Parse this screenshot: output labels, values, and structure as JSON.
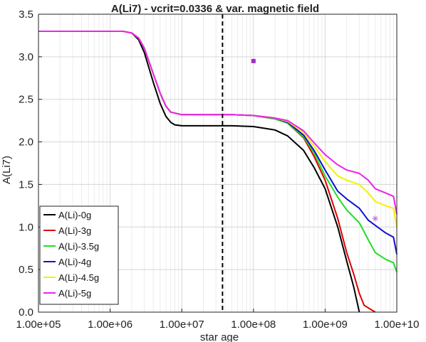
{
  "chart_data": {
    "type": "line",
    "title": "A(Li7) - vcrit=0.0336 & var. magnetic field",
    "xlabel": "star age",
    "ylabel": "A(Li7)",
    "xscale": "log",
    "xlim": [
      100000,
      10000000000
    ],
    "ylim": [
      0,
      3.5
    ],
    "x_tick_values": [
      100000,
      1000000,
      10000000,
      100000000,
      1000000000,
      10000000000
    ],
    "x_tick_labels": [
      "1.00e+05",
      "1.00e+06",
      "1.00e+07",
      "1.00e+08",
      "1.00e+09",
      "1.00e+10"
    ],
    "y_ticks": [
      0,
      0.5,
      1.0,
      1.5,
      2.0,
      2.5,
      3.0,
      3.5
    ],
    "y_tick_labels": [
      "0.0",
      "0.5",
      "1.0",
      "1.5",
      "2.0",
      "2.5",
      "3.0",
      "3.5"
    ],
    "grid": true,
    "legend_position": "bottom-left",
    "vline": {
      "x": 37000000,
      "style": "dashed",
      "color": "#000000"
    },
    "markers": [
      {
        "x": 100000000,
        "y": 2.95,
        "symbol": "square",
        "color": "#9b30c8"
      },
      {
        "x": 5000000000,
        "y": 1.1,
        "symbol": "asterisk",
        "color": "#c070e0"
      }
    ],
    "series": [
      {
        "name": "A(Li)-0g",
        "color": "#000000",
        "x": [
          100000,
          1500000,
          2000000,
          2500000,
          3000000,
          4000000,
          5000000,
          6000000,
          7000000,
          8000000,
          10000000,
          20000000,
          50000000,
          100000000,
          200000000,
          300000000,
          500000000,
          700000000,
          1000000000,
          1500000000,
          2000000000,
          2500000000,
          3000000000
        ],
        "y": [
          3.3,
          3.3,
          3.28,
          3.2,
          3.05,
          2.7,
          2.45,
          2.3,
          2.23,
          2.2,
          2.19,
          2.19,
          2.19,
          2.18,
          2.14,
          2.07,
          1.9,
          1.7,
          1.45,
          1.0,
          0.6,
          0.3,
          0.0
        ]
      },
      {
        "name": "A(Li)-3g",
        "color": "#e00000",
        "x": [
          100000,
          1500000,
          2000000,
          2500000,
          3000000,
          4000000,
          5000000,
          6000000,
          7000000,
          10000000,
          20000000,
          50000000,
          100000000,
          200000000,
          300000000,
          500000000,
          700000000,
          1000000000,
          1500000000,
          2000000000,
          2500000000,
          3000000000,
          3500000000,
          4000000000,
          5000000000
        ],
        "y": [
          3.3,
          3.3,
          3.28,
          3.22,
          3.1,
          2.8,
          2.57,
          2.42,
          2.35,
          2.32,
          2.32,
          2.32,
          2.31,
          2.27,
          2.22,
          2.05,
          1.83,
          1.55,
          1.1,
          0.7,
          0.45,
          0.22,
          0.08,
          0.05,
          0.0
        ]
      },
      {
        "name": "A(Li)-3.5g",
        "color": "#22dd22",
        "x": [
          100000,
          1500000,
          2000000,
          2500000,
          3000000,
          4000000,
          5000000,
          6000000,
          7000000,
          10000000,
          20000000,
          50000000,
          100000000,
          200000000,
          300000000,
          500000000,
          700000000,
          1000000000,
          1500000000,
          2000000000,
          3000000000,
          4000000000,
          5000000000,
          7000000000,
          9000000000,
          10000000000
        ],
        "y": [
          3.3,
          3.3,
          3.28,
          3.22,
          3.1,
          2.8,
          2.57,
          2.42,
          2.35,
          2.32,
          2.32,
          2.32,
          2.31,
          2.27,
          2.22,
          2.06,
          1.87,
          1.6,
          1.35,
          1.2,
          1.05,
          0.85,
          0.7,
          0.62,
          0.58,
          0.47
        ]
      },
      {
        "name": "A(Li)-4g",
        "color": "#1010d0",
        "x": [
          100000,
          1500000,
          2000000,
          2500000,
          3000000,
          4000000,
          5000000,
          6000000,
          7000000,
          10000000,
          20000000,
          50000000,
          100000000,
          200000000,
          300000000,
          500000000,
          700000000,
          1000000000,
          1500000000,
          2000000000,
          3000000000,
          4000000000,
          5000000000,
          7000000000,
          9000000000,
          10000000000
        ],
        "y": [
          3.3,
          3.3,
          3.28,
          3.22,
          3.1,
          2.8,
          2.57,
          2.42,
          2.35,
          2.32,
          2.32,
          2.32,
          2.31,
          2.28,
          2.23,
          2.08,
          1.9,
          1.67,
          1.42,
          1.33,
          1.22,
          1.08,
          1.02,
          0.93,
          0.88,
          0.68
        ]
      },
      {
        "name": "A(Li)-4.5g",
        "color": "#f2f200",
        "x": [
          100000,
          1500000,
          2000000,
          2500000,
          3000000,
          4000000,
          5000000,
          6000000,
          7000000,
          10000000,
          20000000,
          50000000,
          100000000,
          200000000,
          300000000,
          500000000,
          700000000,
          1000000000,
          1500000000,
          2000000000,
          3000000000,
          4000000000,
          5000000000,
          7000000000,
          9000000000,
          10000000000
        ],
        "y": [
          3.3,
          3.3,
          3.28,
          3.22,
          3.1,
          2.8,
          2.57,
          2.42,
          2.35,
          2.32,
          2.32,
          2.32,
          2.31,
          2.28,
          2.24,
          2.11,
          1.95,
          1.77,
          1.6,
          1.55,
          1.5,
          1.4,
          1.3,
          1.25,
          1.22,
          1.0
        ]
      },
      {
        "name": "A(Li)-5g",
        "color": "#ee22ee",
        "x": [
          100000,
          1500000,
          2000000,
          2500000,
          3000000,
          4000000,
          5000000,
          6000000,
          7000000,
          10000000,
          20000000,
          50000000,
          100000000,
          200000000,
          300000000,
          500000000,
          700000000,
          1000000000,
          1500000000,
          2000000000,
          3000000000,
          4000000000,
          5000000000,
          7000000000,
          9000000000,
          10000000000
        ],
        "y": [
          3.3,
          3.3,
          3.28,
          3.22,
          3.1,
          2.8,
          2.57,
          2.42,
          2.35,
          2.32,
          2.32,
          2.32,
          2.31,
          2.28,
          2.25,
          2.13,
          1.99,
          1.85,
          1.73,
          1.67,
          1.63,
          1.55,
          1.45,
          1.4,
          1.36,
          1.15
        ]
      }
    ]
  }
}
